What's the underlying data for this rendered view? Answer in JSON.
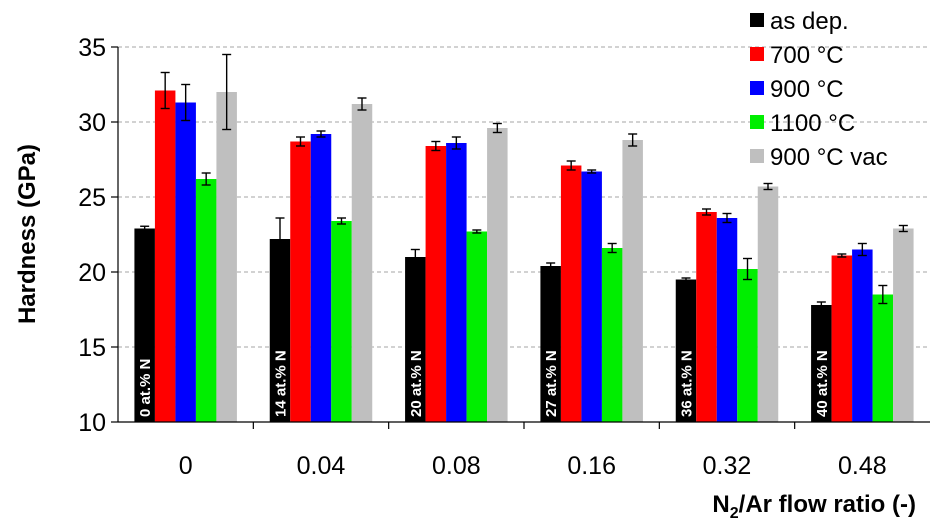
{
  "chart_data": {
    "type": "bar",
    "categories": [
      "0",
      "0.04",
      "0.08",
      "0.16",
      "0.32",
      "0.48"
    ],
    "bar_labels": [
      "0 at.% N",
      "14 at.% N",
      "20 at.% N",
      "27 at.% N",
      "36 at.% N",
      "40 at.% N"
    ],
    "ylabel": "Hardness (GPa)",
    "xlabel": {
      "main": "N",
      "sub": "2",
      "rest": "/Ar flow ratio (-)"
    },
    "ylim": [
      10,
      35
    ],
    "yticks": [
      10,
      15,
      20,
      25,
      30,
      35
    ],
    "grid": "horizontal dashed",
    "legend_position": "top-right",
    "series": [
      {
        "name": "as dep.",
        "color": "#000000",
        "values": [
          22.9,
          22.2,
          21.0,
          20.4,
          19.5,
          17.8
        ],
        "errors": [
          0.15,
          1.4,
          0.5,
          0.2,
          0.1,
          0.2
        ]
      },
      {
        "name": "700 °C",
        "color": "#ff0000",
        "values": [
          32.1,
          28.7,
          28.4,
          27.1,
          24.0,
          21.1
        ],
        "errors": [
          1.2,
          0.3,
          0.3,
          0.3,
          0.2,
          0.1
        ]
      },
      {
        "name": "900 °C",
        "color": "#0000ff",
        "values": [
          31.3,
          29.2,
          28.6,
          26.7,
          23.6,
          21.5
        ],
        "errors": [
          1.2,
          0.2,
          0.4,
          0.1,
          0.3,
          0.4
        ]
      },
      {
        "name": "1100 °C",
        "color": "#00ee00",
        "values": [
          26.2,
          23.4,
          22.7,
          21.6,
          20.2,
          18.5
        ],
        "errors": [
          0.4,
          0.2,
          0.1,
          0.3,
          0.7,
          0.6
        ]
      },
      {
        "name": "900 °C vac",
        "color": "#bfbfbf",
        "values": [
          32.0,
          31.2,
          29.6,
          28.8,
          25.7,
          22.9
        ],
        "errors": [
          2.5,
          0.4,
          0.3,
          0.4,
          0.2,
          0.2
        ]
      }
    ]
  }
}
